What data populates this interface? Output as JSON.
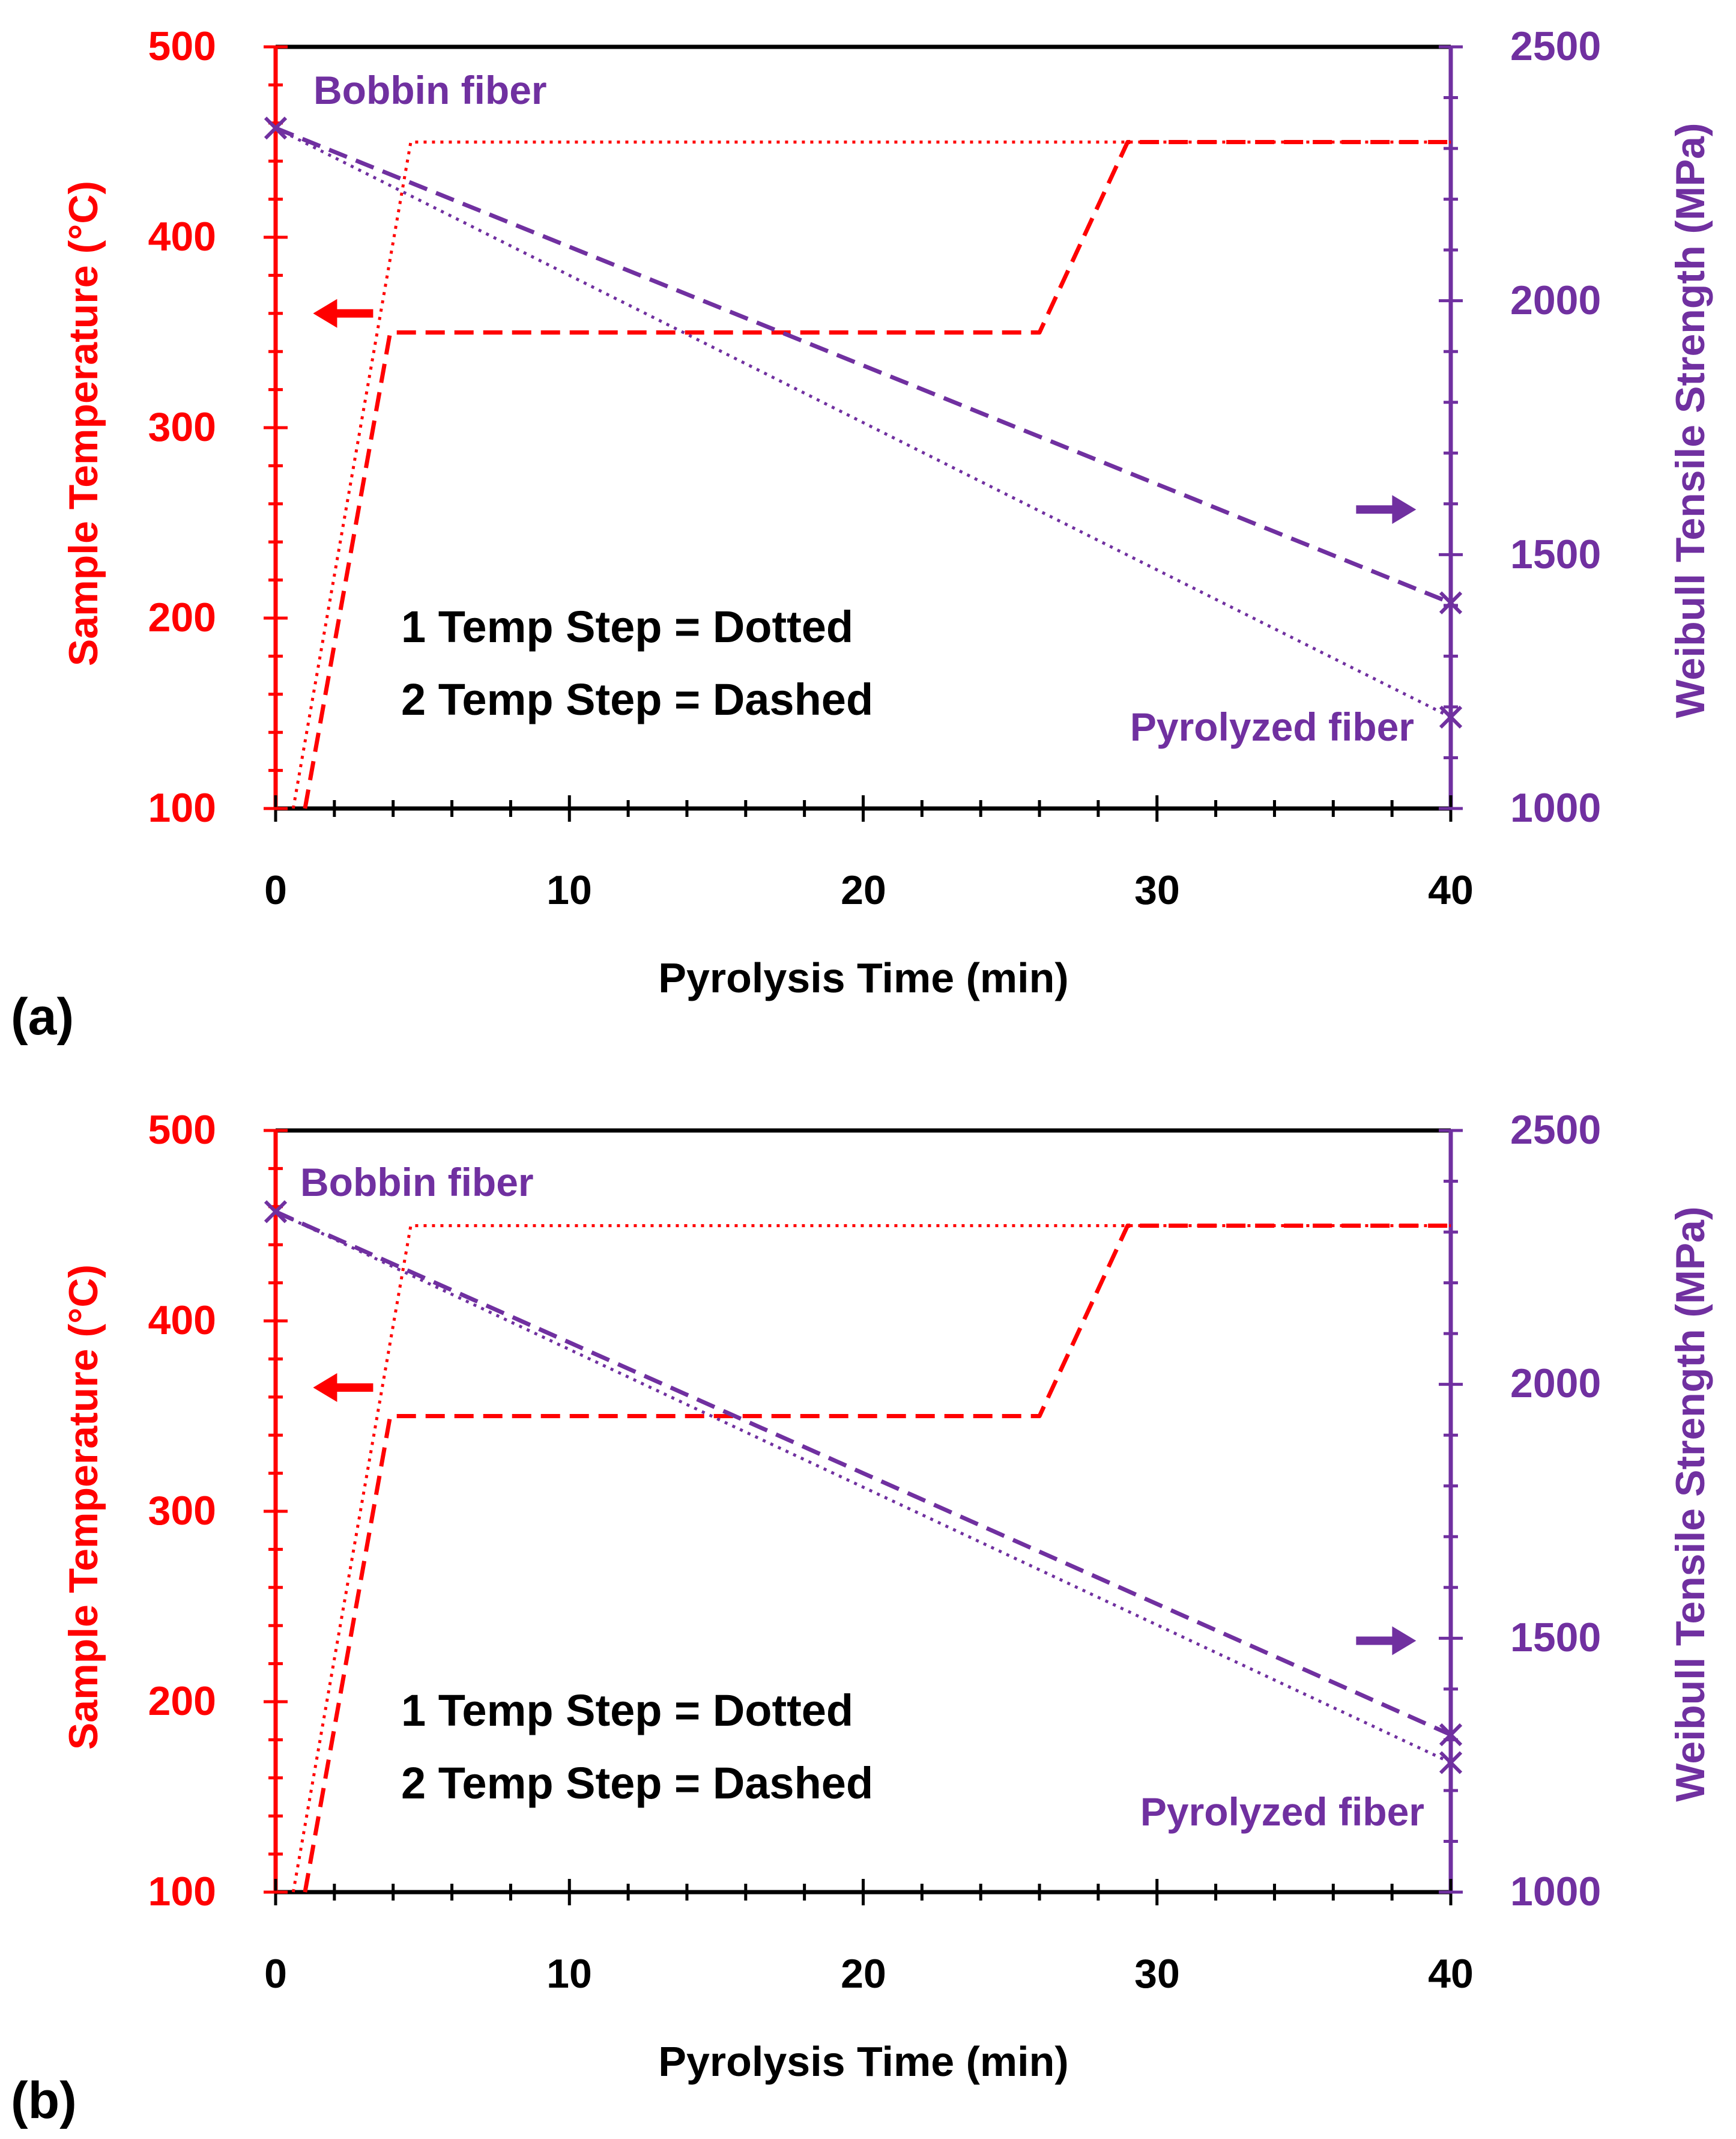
{
  "colors": {
    "temperature": "#ff0000",
    "strength": "#7030a0",
    "frame": "#000000",
    "text": "#000000"
  },
  "chart_data": [
    {
      "panel_label": "(a)",
      "type": "line",
      "xlabel": "Pyrolysis Time (min)",
      "ylabel_left": "Sample Temperature (°C)",
      "ylabel_right": "Weibull Tensile Strength (MPa)",
      "xlim": [
        0,
        40
      ],
      "ylim_left": [
        100,
        500
      ],
      "ylim_right": [
        1000,
        2500
      ],
      "x_ticks": [
        "0",
        "10",
        "20",
        "30",
        "40"
      ],
      "y_ticks_left": [
        "100",
        "200",
        "300",
        "400",
        "500"
      ],
      "y_ticks_right": [
        "1000",
        "1500",
        "2000",
        "2500"
      ],
      "legend_lines": [
        "1 Temp Step = Dotted",
        "2 Temp Step = Dashed"
      ],
      "annotations": {
        "start": "Bobbin fiber",
        "end": "Pyrolyzed fiber"
      },
      "series": [
        {
          "name": "1 Temp Step temperature",
          "axis": "left",
          "style": "dotted",
          "x": [
            0.6,
            4.6,
            40
          ],
          "y": [
            100,
            450,
            450
          ]
        },
        {
          "name": "2 Temp Step temperature",
          "axis": "left",
          "style": "dashed",
          "x": [
            1.0,
            3.9,
            26.0,
            29.0,
            40
          ],
          "y": [
            100,
            350,
            350,
            450,
            450
          ]
        },
        {
          "name": "1 Temp Step strength",
          "axis": "right",
          "style": "dotted",
          "x": [
            0,
            40
          ],
          "y": [
            2340,
            1180
          ]
        },
        {
          "name": "2 Temp Step strength",
          "axis": "right",
          "style": "dashed",
          "x": [
            0,
            40
          ],
          "y": [
            2340,
            1405
          ]
        }
      ],
      "markers": [
        {
          "label": "Bobbin fiber",
          "x": 0,
          "y": 2340
        },
        {
          "label": "Pyrolyzed fiber (dashed)",
          "x": 40,
          "y": 1405
        },
        {
          "label": "Pyrolyzed fiber (dotted)",
          "x": 40,
          "y": 1180
        }
      ],
      "arrows": [
        {
          "points_to": "left",
          "x": 2.4,
          "y_left": 360
        },
        {
          "points_to": "right",
          "x": 37.8,
          "y_left": 257
        }
      ]
    },
    {
      "panel_label": "(b)",
      "type": "line",
      "xlabel": "Pyrolysis Time (min)",
      "ylabel_left": "Sample Temperature (°C)",
      "ylabel_right": "Weibull Tensile Strength (MPa)",
      "xlim": [
        0,
        40
      ],
      "ylim_left": [
        100,
        500
      ],
      "ylim_right": [
        1000,
        2500
      ],
      "x_ticks": [
        "0",
        "10",
        "20",
        "30",
        "40"
      ],
      "y_ticks_left": [
        "100",
        "200",
        "300",
        "400",
        "500"
      ],
      "y_ticks_right": [
        "1000",
        "1500",
        "2000",
        "2500"
      ],
      "legend_lines": [
        "1 Temp Step = Dotted",
        "2 Temp Step = Dashed"
      ],
      "annotations": {
        "start": "Bobbin fiber",
        "end": "Pyrolyzed fiber"
      },
      "series": [
        {
          "name": "1 Temp Step temperature",
          "axis": "left",
          "style": "dotted",
          "x": [
            0.6,
            4.6,
            40
          ],
          "y": [
            100,
            450,
            450
          ]
        },
        {
          "name": "2 Temp Step temperature",
          "axis": "left",
          "style": "dashed",
          "x": [
            1.0,
            3.9,
            26.0,
            29.0,
            40
          ],
          "y": [
            100,
            350,
            350,
            450,
            450
          ]
        },
        {
          "name": "1 Temp Step strength",
          "axis": "right",
          "style": "dotted",
          "x": [
            0,
            40
          ],
          "y": [
            2340,
            1255
          ]
        },
        {
          "name": "2 Temp Step strength",
          "axis": "right",
          "style": "dashed",
          "x": [
            0,
            40
          ],
          "y": [
            2340,
            1310
          ]
        }
      ],
      "markers": [
        {
          "label": "Bobbin fiber",
          "x": 0,
          "y": 2340
        },
        {
          "label": "Pyrolyzed fiber (dashed)",
          "x": 40,
          "y": 1310
        },
        {
          "label": "Pyrolyzed fiber (dotted)",
          "x": 40,
          "y": 1255
        }
      ],
      "arrows": [
        {
          "points_to": "left",
          "x": 2.4,
          "y_left": 365
        },
        {
          "points_to": "right",
          "x": 37.8,
          "y_left": 232
        }
      ]
    }
  ]
}
